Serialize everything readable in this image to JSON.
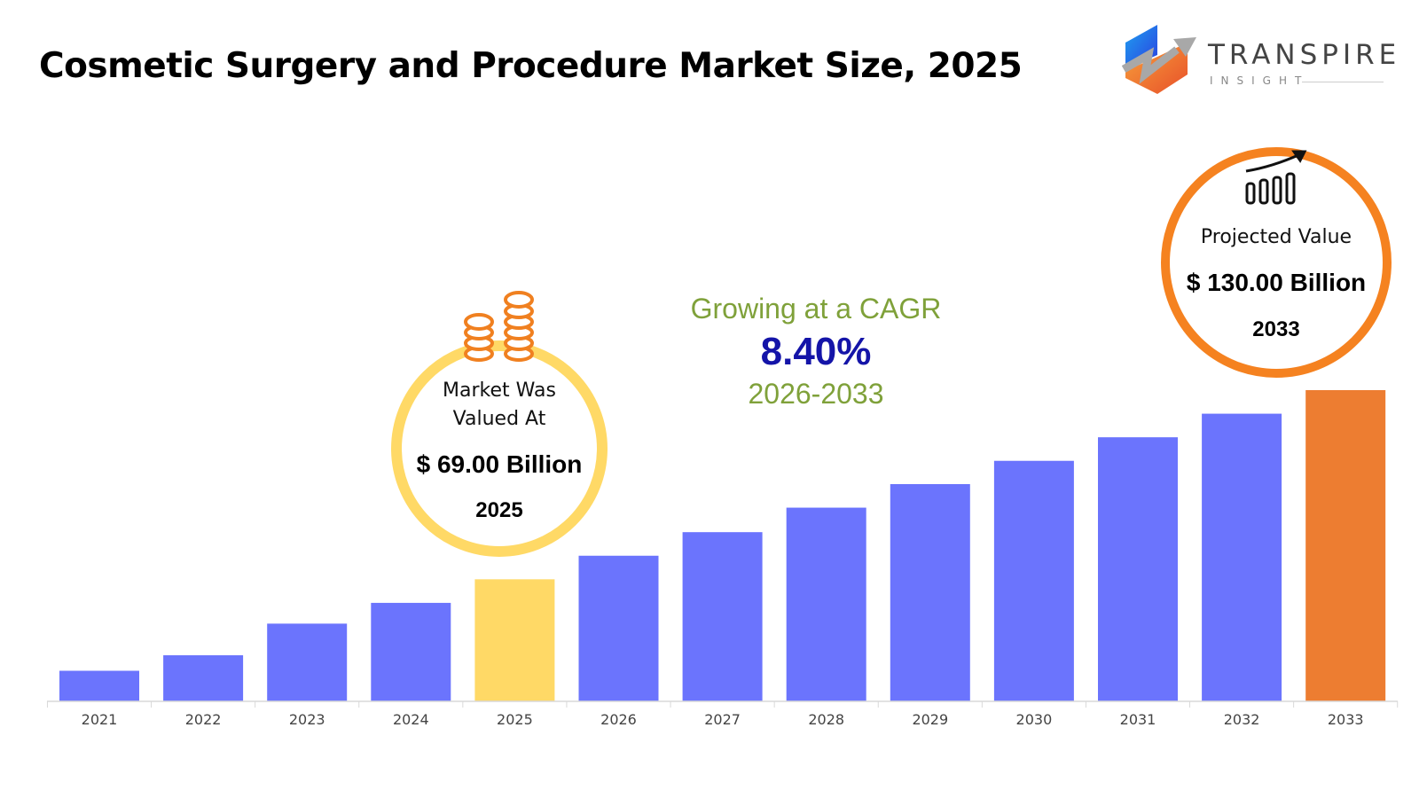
{
  "title": "Cosmetic Surgery and Procedure Market Size, 2025",
  "logo": {
    "name": "TRANSPIRE",
    "sub": "INSIGHT"
  },
  "current_callout": {
    "line1": "Market Was",
    "line2": "Valued At",
    "value": "$ 69.00 Billion",
    "year": "2025",
    "icon": "coins-icon",
    "ring_color": "#FFD966"
  },
  "cagr": {
    "label": "Growing at a CAGR",
    "value": "8.40%",
    "period": "2026-2033"
  },
  "projected_callout": {
    "label": "Projected Value",
    "value": "$ 130.00 Billion",
    "year": "2033",
    "icon": "growth-chart-icon",
    "ring_color": "#F58220"
  },
  "chart_data": {
    "type": "bar",
    "title": "Cosmetic Surgery and Procedure Market Size, 2025",
    "xlabel": "",
    "ylabel": "",
    "categories": [
      "2021",
      "2022",
      "2023",
      "2024",
      "2025",
      "2026",
      "2027",
      "2028",
      "2029",
      "2030",
      "2031",
      "2032",
      "2033"
    ],
    "values": [
      39.5,
      44.5,
      54.7,
      61.4,
      69.0,
      76.6,
      84.2,
      92.1,
      99.7,
      107.2,
      114.8,
      122.4,
      130.0
    ],
    "unit": "USD Billion",
    "ylim": [
      34.5,
      130
    ],
    "grid": false,
    "colors": {
      "default": "#6B74FD",
      "highlight_2025": "#FFD966",
      "highlight_2033": "#ED7D31"
    }
  }
}
